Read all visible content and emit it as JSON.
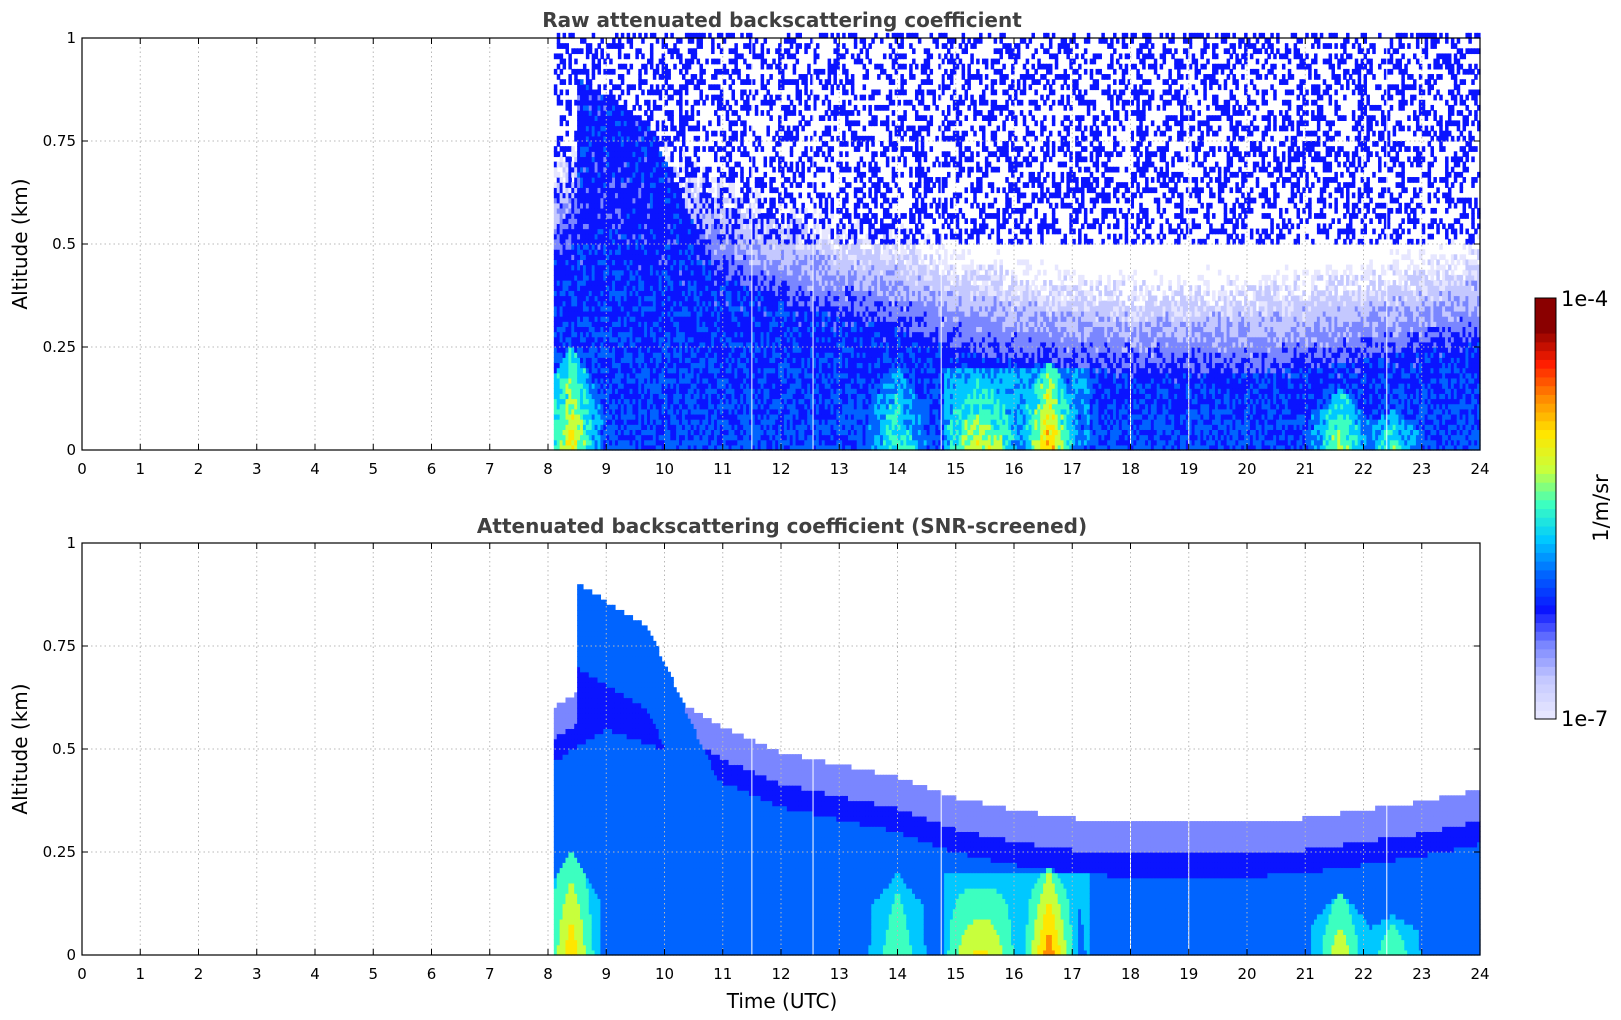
{
  "chart_data": [
    {
      "type": "heatmap",
      "title": "Raw attenuated backscattering coefficient",
      "xlabel": "",
      "ylabel": "Altitude (km)",
      "xlim": [
        0,
        24
      ],
      "ylim": [
        0,
        1
      ],
      "x_ticks": [
        "0",
        "1",
        "2",
        "3",
        "4",
        "5",
        "6",
        "7",
        "8",
        "9",
        "10",
        "11",
        "12",
        "13",
        "14",
        "15",
        "16",
        "17",
        "18",
        "19",
        "20",
        "21",
        "22",
        "23",
        "24"
      ],
      "y_ticks": [
        "0",
        "0.25",
        "0.5",
        "0.75",
        "1"
      ],
      "grid": true,
      "data_start_hour": 8.1,
      "screened": false,
      "features": {
        "mixed_layer_top_km": [
          [
            8.1,
            0.47
          ],
          [
            9,
            0.55
          ],
          [
            10,
            0.5
          ],
          [
            11,
            0.42
          ],
          [
            12,
            0.36
          ],
          [
            13,
            0.33
          ],
          [
            14,
            0.3
          ],
          [
            15,
            0.25
          ],
          [
            16,
            0.22
          ],
          [
            17,
            0.2
          ],
          [
            18,
            0.19
          ],
          [
            19,
            0.19
          ],
          [
            20,
            0.19
          ],
          [
            21,
            0.2
          ],
          [
            22,
            0.22
          ],
          [
            23,
            0.24
          ],
          [
            24,
            0.27
          ]
        ],
        "residual_layer_peak": {
          "start_hour": 8.5,
          "start_km": 0.82,
          "peak_hour": 9.7,
          "peak_km": 0.72,
          "end_hour": 11,
          "end_km": 0.32
        },
        "high_backscatter_events": [
          {
            "hour": 8.4,
            "top_km": 0.25,
            "level": 0.7
          },
          {
            "hour": 14,
            "top_km": 0.2,
            "level": 0.55
          },
          {
            "hour": 15.4,
            "top_km": 0.18,
            "level": 0.55
          },
          {
            "hour": 16.6,
            "top_km": 0.22,
            "level": 0.78
          },
          {
            "hour": 21.6,
            "top_km": 0.15,
            "level": 0.62
          },
          {
            "hour": 22.5,
            "top_km": 0.1,
            "level": 0.55
          }
        ]
      }
    },
    {
      "type": "heatmap",
      "title": "Attenuated backscattering coefficient (SNR-screened)",
      "xlabel": "Time (UTC)",
      "ylabel": "Altitude (km)",
      "xlim": [
        0,
        24
      ],
      "ylim": [
        0,
        1
      ],
      "x_ticks": [
        "0",
        "1",
        "2",
        "3",
        "4",
        "5",
        "6",
        "7",
        "8",
        "9",
        "10",
        "11",
        "12",
        "13",
        "14",
        "15",
        "16",
        "17",
        "18",
        "19",
        "20",
        "21",
        "22",
        "23",
        "24"
      ],
      "y_ticks": [
        "0",
        "0.25",
        "0.5",
        "0.75",
        "1"
      ],
      "grid": true,
      "data_start_hour": 8.1,
      "screened": true
    }
  ],
  "colorbar": {
    "label": "1/m/sr",
    "max_label": "1e-4",
    "min_label": "1e-7",
    "scale": "log",
    "colormap": [
      "#e6e6ff",
      "#c4c8ff",
      "#7a86ff",
      "#0a14ff",
      "#0064ff",
      "#00c8ff",
      "#3cffc0",
      "#c8ff3c",
      "#ffe600",
      "#ff8c00",
      "#ff1e00",
      "#8a0000"
    ]
  }
}
